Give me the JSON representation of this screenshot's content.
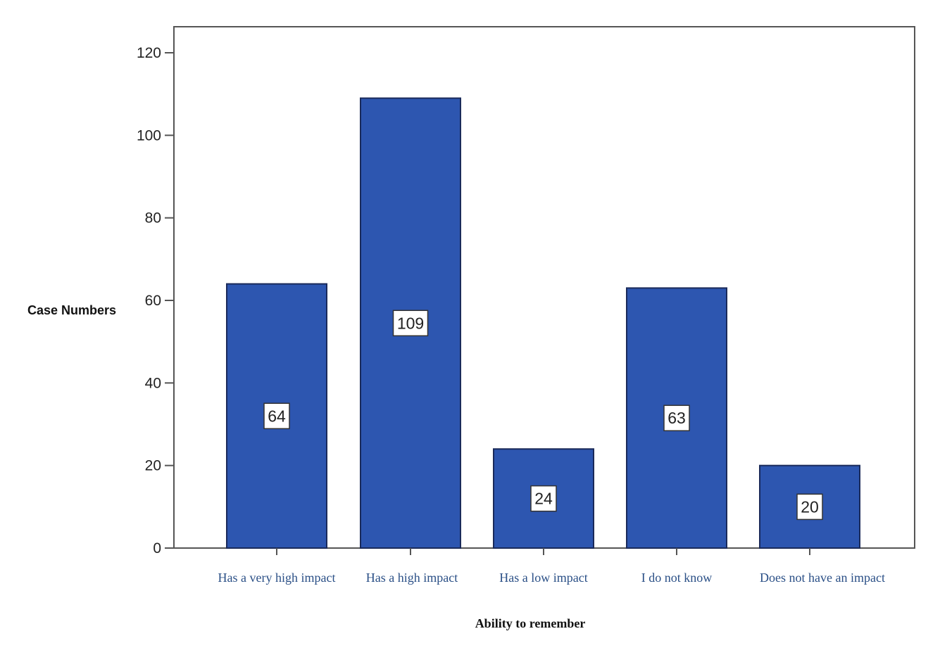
{
  "chart_data": {
    "type": "bar",
    "categories": [
      "Has a very high impact",
      "Has a high impact",
      "Has a low impact",
      "I do not know",
      "Does not have an impact"
    ],
    "values": [
      64,
      109,
      24,
      63,
      20
    ],
    "data_labels": [
      "64",
      "109",
      "24",
      "63",
      "20"
    ],
    "xlabel": "Ability to remember",
    "ylabel": "Case Numbers",
    "ylim": [
      0,
      120
    ],
    "yticks": [
      0,
      20,
      40,
      60,
      80,
      100,
      120
    ],
    "ytick_labels": [
      "0",
      "20",
      "40",
      "60",
      "80",
      "100",
      "120"
    ],
    "bar_color": "#2d56b0",
    "bar_edge_color": "#1a2a5a",
    "grid": false,
    "legend": "none"
  }
}
